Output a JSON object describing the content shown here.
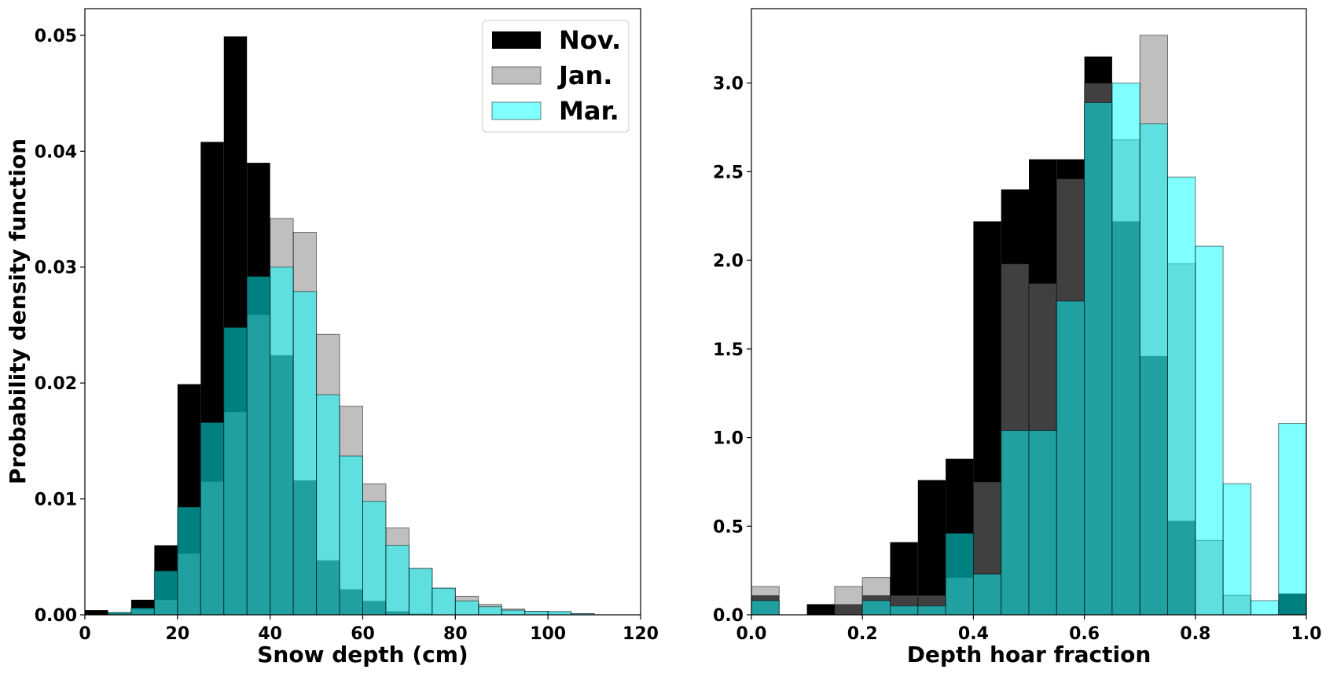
{
  "chart_data": [
    {
      "type": "bar",
      "subtype": "histogram-overlay",
      "xlabel": "Snow depth (cm)",
      "ylabel": "Probability density function",
      "xlim": [
        0,
        120
      ],
      "ylim": [
        0,
        0.0523
      ],
      "xticks": [
        "0",
        "20",
        "40",
        "60",
        "80",
        "100",
        "120"
      ],
      "xtick_values": [
        0,
        20,
        40,
        60,
        80,
        100,
        120
      ],
      "yticks": [
        "0.00",
        "0.01",
        "0.02",
        "0.03",
        "0.04",
        "0.05"
      ],
      "ytick_values": [
        0,
        0.01,
        0.02,
        0.03,
        0.04,
        0.05
      ],
      "bin_edges": [
        0,
        5,
        10,
        15,
        20,
        25,
        30,
        35,
        40,
        45,
        50,
        55,
        60,
        65,
        70,
        75,
        80,
        85,
        90,
        95,
        100,
        105,
        110,
        115,
        120
      ],
      "grid": false,
      "legend_position": "top-right",
      "series": [
        {
          "name": "Nov.",
          "color": "#000000",
          "alpha": 1.0,
          "edgecolor": "none",
          "values": [
            0.0004,
            0.0002,
            0.0013,
            0.006,
            0.0199,
            0.0408,
            0.0499,
            0.039,
            0.0224,
            0.0116,
            0.0047,
            0.0022,
            0.0012,
            0.0003,
            0.0001,
            0,
            0,
            0,
            0,
            0,
            0,
            0,
            0,
            0
          ]
        },
        {
          "name": "Jan.",
          "color": "#808080",
          "alpha": 0.5,
          "edgecolor": "#000000",
          "values": [
            0,
            0.0001,
            0.0005,
            0.0013,
            0.0053,
            0.0115,
            0.0175,
            0.0259,
            0.0342,
            0.033,
            0.0242,
            0.018,
            0.0113,
            0.0075,
            0.004,
            0.0023,
            0.0016,
            0.0009,
            0.0005,
            0.0003,
            0.0002,
            0.0001,
            0,
            0
          ]
        },
        {
          "name": "Mar.",
          "color": "#00ffff",
          "alpha": 0.5,
          "edgecolor": "#000000",
          "values": [
            0,
            0.0002,
            0.0006,
            0.0038,
            0.0093,
            0.0166,
            0.0248,
            0.0292,
            0.03,
            0.0279,
            0.019,
            0.0137,
            0.0098,
            0.006,
            0.004,
            0.0023,
            0.0012,
            0.0007,
            0.0004,
            0.0003,
            0.0003,
            0.0001,
            0,
            0
          ]
        }
      ]
    },
    {
      "type": "bar",
      "subtype": "histogram-overlay",
      "xlabel": "Depth hoar fraction",
      "ylabel": "",
      "xlim": [
        0,
        1.0
      ],
      "ylim": [
        0,
        3.42
      ],
      "xticks": [
        "0.0",
        "0.2",
        "0.4",
        "0.6",
        "0.8",
        "1.0"
      ],
      "xtick_values": [
        0,
        0.2,
        0.4,
        0.6,
        0.8,
        1.0
      ],
      "yticks": [
        "0.0",
        "0.5",
        "1.0",
        "1.5",
        "2.0",
        "2.5",
        "3.0"
      ],
      "ytick_values": [
        0,
        0.5,
        1.0,
        1.5,
        2.0,
        2.5,
        3.0
      ],
      "bin_edges": [
        0,
        0.05,
        0.1,
        0.15,
        0.2,
        0.25,
        0.3,
        0.35,
        0.4,
        0.45,
        0.5,
        0.55,
        0.6,
        0.65,
        0.7,
        0.75,
        0.8,
        0.85,
        0.9,
        0.95,
        1.0
      ],
      "grid": false,
      "series": [
        {
          "name": "Nov.",
          "color": "#000000",
          "alpha": 1.0,
          "edgecolor": "none",
          "values": [
            0.11,
            0,
            0.06,
            0.06,
            0.11,
            0.41,
            0.76,
            0.88,
            2.22,
            2.4,
            2.57,
            2.57,
            3.15,
            2.22,
            1.46,
            0.53,
            0,
            0,
            0,
            0.12
          ]
        },
        {
          "name": "Jan.",
          "color": "#808080",
          "alpha": 0.5,
          "edgecolor": "#000000",
          "values": [
            0.16,
            0,
            0,
            0.16,
            0.21,
            0.11,
            0.11,
            0.21,
            0.75,
            1.98,
            1.87,
            2.46,
            3.0,
            2.68,
            3.27,
            1.98,
            0.42,
            0.11,
            0,
            0
          ]
        },
        {
          "name": "Mar.",
          "color": "#00ffff",
          "alpha": 0.5,
          "edgecolor": "#000000",
          "values": [
            0.08,
            0,
            0,
            0,
            0.08,
            0.05,
            0.05,
            0.46,
            0.23,
            1.04,
            1.04,
            1.77,
            2.89,
            3.0,
            2.77,
            2.47,
            2.08,
            0.74,
            0.08,
            1.08
          ]
        }
      ]
    }
  ]
}
